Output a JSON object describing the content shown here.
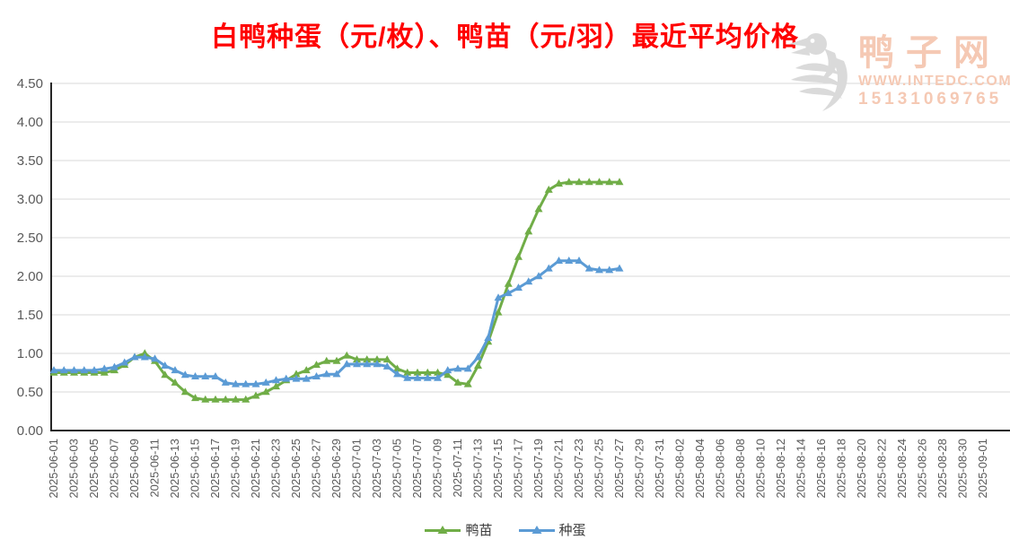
{
  "header": {
    "title": "白鸭种蛋（元/枚）、鸭苗（元/羽）最近平均价格",
    "title_color": "#ff0000"
  },
  "watermark": {
    "site_name": "鸭子网",
    "website": "WWW.INTEDC.COM",
    "phone": "15131069765",
    "text_color": "#f5c9b4",
    "icon": "duck-logo-icon",
    "icon_color": "#dadada"
  },
  "chart_data": {
    "type": "line",
    "title": "白鸭种蛋（元/枚）、鸭苗（元/羽）最近平均价格",
    "xlabel": "",
    "ylabel": "",
    "ylim": [
      0,
      4.5
    ],
    "y_tick_step": 0.5,
    "y_ticks": [
      "0.00",
      "0.50",
      "1.00",
      "1.50",
      "2.00",
      "2.50",
      "3.00",
      "3.50",
      "4.00",
      "4.50"
    ],
    "grid": "horizontal",
    "grid_color": "#d9d9d9",
    "axis_color": "#262626",
    "tick_label_color": "#595959",
    "legend_position": "bottom-center",
    "x_axis_labels": [
      "2025-06-01",
      "2025-06-03",
      "2025-06-05",
      "2025-06-07",
      "2025-06-09",
      "2025-06-11",
      "2025-06-13",
      "2025-06-15",
      "2025-06-17",
      "2025-06-19",
      "2025-06-21",
      "2025-06-23",
      "2025-06-25",
      "2025-06-27",
      "2025-06-29",
      "2025-07-01",
      "2025-07-03",
      "2025-07-05",
      "2025-07-07",
      "2025-07-09",
      "2025-07-11",
      "2025-07-13",
      "2025-07-15",
      "2025-07-17",
      "2025-07-19",
      "2025-07-21",
      "2025-07-23",
      "2025-07-25",
      "2025-07-27",
      "2025-07-29",
      "2025-07-31",
      "2025-08-02",
      "2025-08-04",
      "2025-08-06",
      "2025-08-08",
      "2025-08-10",
      "2025-08-12",
      "2025-08-14",
      "2025-08-16",
      "2025-08-18",
      "2025-08-20",
      "2025-08-22",
      "2025-08-24",
      "2025-08-26",
      "2025-08-28",
      "2025-08-30",
      "2025-09-01"
    ],
    "dates": [
      "2025-06-01",
      "2025-06-02",
      "2025-06-03",
      "2025-06-04",
      "2025-06-05",
      "2025-06-06",
      "2025-06-07",
      "2025-06-08",
      "2025-06-09",
      "2025-06-10",
      "2025-06-11",
      "2025-06-12",
      "2025-06-13",
      "2025-06-14",
      "2025-06-15",
      "2025-06-16",
      "2025-06-17",
      "2025-06-18",
      "2025-06-19",
      "2025-06-20",
      "2025-06-21",
      "2025-06-22",
      "2025-06-23",
      "2025-06-24",
      "2025-06-25",
      "2025-06-26",
      "2025-06-27",
      "2025-06-28",
      "2025-06-29",
      "2025-06-30",
      "2025-07-01",
      "2025-07-02",
      "2025-07-03",
      "2025-07-04",
      "2025-07-05",
      "2025-07-06",
      "2025-07-07",
      "2025-07-08",
      "2025-07-09",
      "2025-07-10",
      "2025-07-11",
      "2025-07-12",
      "2025-07-13",
      "2025-07-14",
      "2025-07-15",
      "2025-07-16",
      "2025-07-17",
      "2025-07-18",
      "2025-07-19",
      "2025-07-20",
      "2025-07-21",
      "2025-07-22",
      "2025-07-23",
      "2025-07-24",
      "2025-07-25",
      "2025-07-26",
      "2025-07-27"
    ],
    "series": [
      {
        "name": "鸭苗",
        "color": "#70ad47",
        "marker": "triangle-up",
        "values": [
          0.75,
          0.75,
          0.75,
          0.75,
          0.75,
          0.75,
          0.78,
          0.85,
          0.95,
          1.0,
          0.9,
          0.72,
          0.62,
          0.5,
          0.42,
          0.4,
          0.4,
          0.4,
          0.4,
          0.4,
          0.45,
          0.5,
          0.57,
          0.65,
          0.73,
          0.78,
          0.85,
          0.9,
          0.9,
          0.97,
          0.92,
          0.92,
          0.92,
          0.92,
          0.8,
          0.75,
          0.75,
          0.75,
          0.75,
          0.72,
          0.62,
          0.6,
          0.84,
          1.15,
          1.53,
          1.9,
          2.25,
          2.58,
          2.87,
          3.12,
          3.2,
          3.22,
          3.22,
          3.22,
          3.22,
          3.22,
          3.22
        ]
      },
      {
        "name": "种蛋",
        "color": "#5b9bd5",
        "marker": "triangle-up",
        "values": [
          0.78,
          0.78,
          0.78,
          0.78,
          0.78,
          0.8,
          0.82,
          0.88,
          0.95,
          0.95,
          0.93,
          0.84,
          0.78,
          0.72,
          0.7,
          0.7,
          0.7,
          0.62,
          0.6,
          0.6,
          0.6,
          0.62,
          0.65,
          0.67,
          0.67,
          0.67,
          0.7,
          0.73,
          0.73,
          0.86,
          0.86,
          0.86,
          0.86,
          0.83,
          0.73,
          0.68,
          0.68,
          0.68,
          0.68,
          0.78,
          0.8,
          0.8,
          0.95,
          1.2,
          1.72,
          1.78,
          1.85,
          1.93,
          2.0,
          2.1,
          2.2,
          2.2,
          2.2,
          2.1,
          2.08,
          2.08,
          2.1
        ]
      }
    ]
  }
}
